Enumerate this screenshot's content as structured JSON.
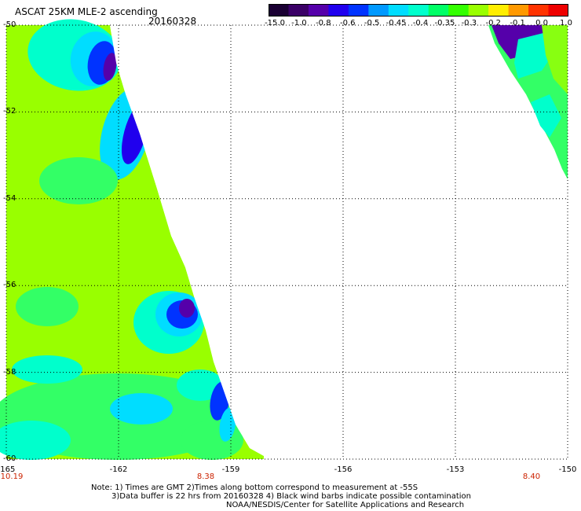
{
  "header": {
    "title": "ASCAT 25KM MLE-2 ascending",
    "date": "20160328"
  },
  "colorbar": {
    "labels": [
      "-15.0",
      "-1.0",
      "-0.8",
      "-0.6",
      "-0.5",
      "-0.45",
      "-0.4",
      "-0.35",
      "-0.3",
      "-0.2",
      "-0.1",
      "0.0",
      "1.0"
    ],
    "colors": [
      "#1a0033",
      "#3a0066",
      "#5500aa",
      "#2000ee",
      "#0033ff",
      "#0099ff",
      "#00ddff",
      "#00ffcc",
      "#00ff66",
      "#33ff00",
      "#99ff00",
      "#ffee00",
      "#ff9900",
      "#ff3300",
      "#ee0000"
    ]
  },
  "map": {
    "lat_labels": [
      "-50",
      "-52",
      "-54",
      "-56",
      "-58",
      "-60"
    ],
    "lon_labels": [
      "-165",
      "-162",
      "-159",
      "-156",
      "-153",
      "-150"
    ],
    "time_labels": [
      "10.19",
      "8.38",
      "8.40"
    ],
    "colors": {
      "green": "#99ff00",
      "green_alt": "#88ff11",
      "mint": "#33ff66",
      "aqua": "#00ffcc",
      "cyan": "#00ddff",
      "blue_light": "#0099ff",
      "blue": "#0033ff",
      "blue_deep": "#2000ee",
      "purple": "#5500aa"
    }
  },
  "footer": {
    "line1": "Note: 1) Times are GMT 2)Times along bottom correspond to measurement at -55S",
    "line2": "3)Data buffer is 22 hrs from 20160328 4) Black wind barbs indicate possible contamination",
    "line3": "NOAA/NESDIS/Center for Satellite Applications and Research"
  }
}
